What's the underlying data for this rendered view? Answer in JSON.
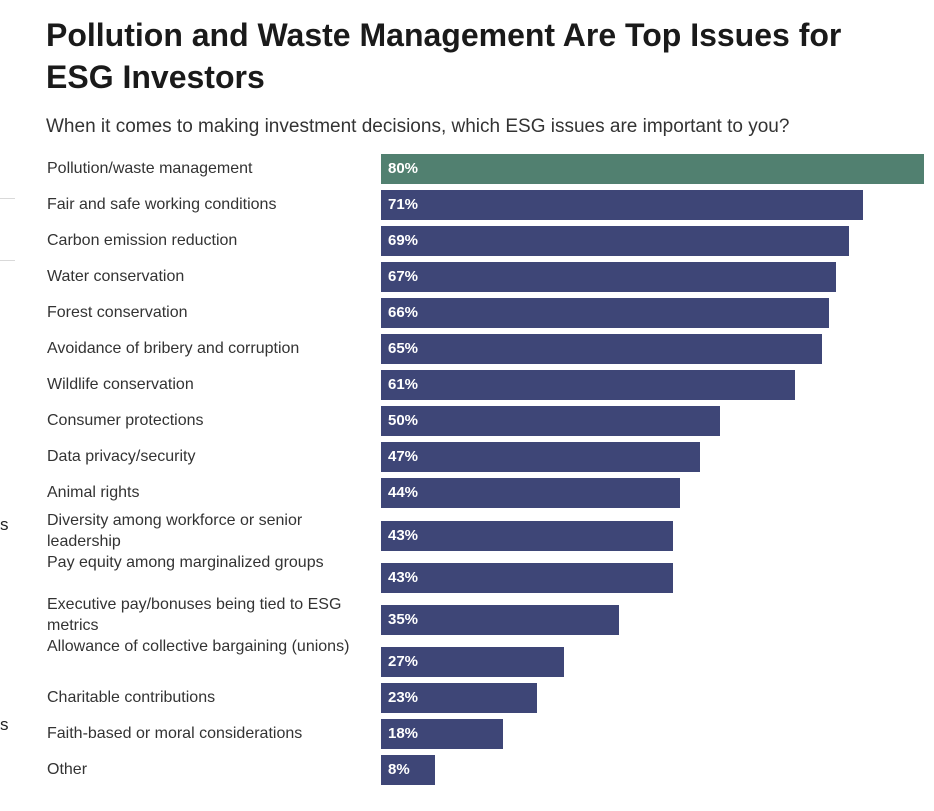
{
  "header": {
    "title": "Pollution and Waste Management Are Top Issues for ESG Investors",
    "subtitle": "When it comes to making investment decisions, which ESG issues are important to you?"
  },
  "edge_fragments": [
    "s",
    "s"
  ],
  "colors": {
    "highlight": "#518070",
    "bar": "#3e4677",
    "bar_text": "#ffffff"
  },
  "chart_data": {
    "type": "bar",
    "orientation": "horizontal",
    "categories": [
      "Pollution/waste management",
      "Fair and safe working conditions",
      "Carbon emission reduction",
      "Water conservation",
      "Forest conservation",
      "Avoidance of bribery and corruption",
      "Wildlife conservation",
      "Consumer protections",
      "Data privacy/security",
      "Animal rights",
      "Diversity among workforce or senior leadership",
      "Pay equity among marginalized groups",
      "Executive pay/bonuses being tied to ESG metrics",
      "Allowance of collective bargaining (unions)",
      "Charitable contributions",
      "Faith-based or moral considerations",
      "Other"
    ],
    "values": [
      80,
      71,
      69,
      67,
      66,
      65,
      61,
      50,
      47,
      44,
      43,
      43,
      35,
      27,
      23,
      18,
      8
    ],
    "value_labels": [
      "80%",
      "71%",
      "69%",
      "67%",
      "66%",
      "65%",
      "61%",
      "50%",
      "47%",
      "44%",
      "43%",
      "43%",
      "35%",
      "27%",
      "23%",
      "18%",
      "8%"
    ],
    "unit": "%",
    "highlight_index": 0,
    "xlim": [
      0,
      80
    ],
    "grid": false,
    "legend": "none"
  }
}
